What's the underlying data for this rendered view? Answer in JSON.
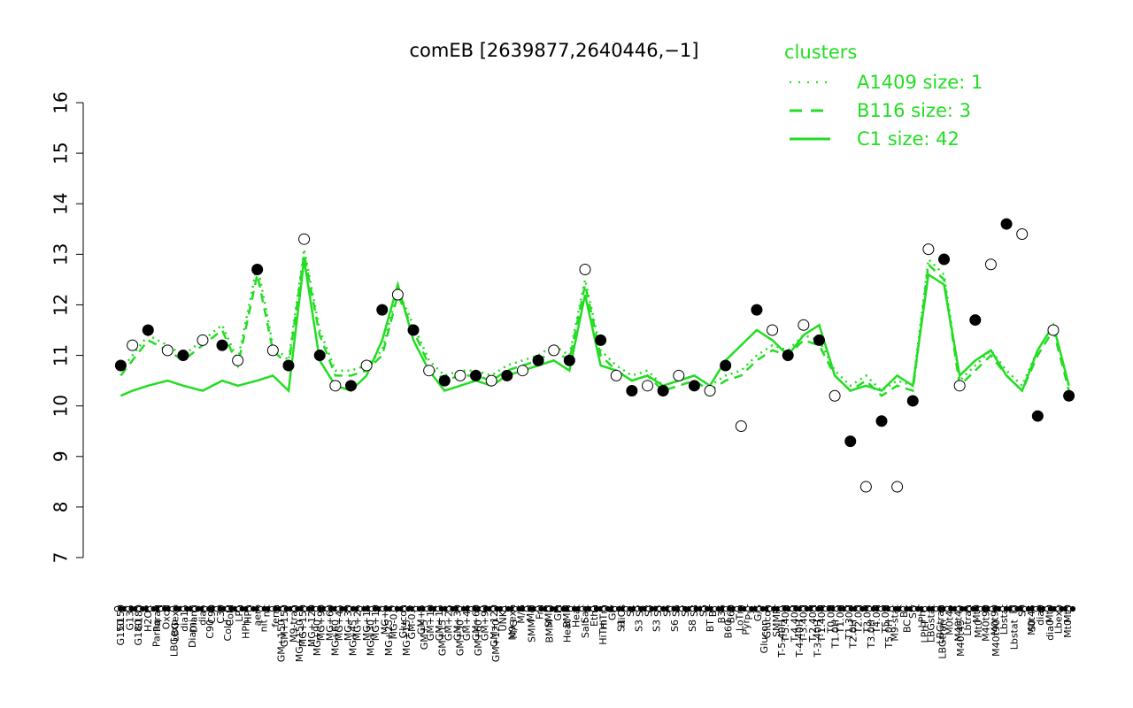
{
  "chart_data": {
    "type": "line",
    "title": "comEB [2639877,2640446,−1]",
    "ylim": [
      7,
      16
    ],
    "yticks": [
      "7",
      "8",
      "9",
      "10",
      "11",
      "12",
      "13",
      "14",
      "15",
      "16"
    ],
    "colors": {
      "clusters": "#22dd22",
      "points_filled": "#000000",
      "points_open": "#ffffff",
      "axis": "#000000"
    },
    "legend": {
      "title": "clusters",
      "placement": "top-right",
      "entries": [
        {
          "label": "A1409 size: 1",
          "style": "dotted"
        },
        {
          "label": "B116 size: 3",
          "style": "dashed"
        },
        {
          "label": "C1 size: 42",
          "style": "solid"
        }
      ]
    },
    "x_labels_upper": [
      "G150",
      "G135",
      "G180",
      "H2O2",
      "Paraq",
      "Oxctl",
      "LBGexp",
      "dia15",
      "Diami",
      "dia5",
      "C90",
      "C30",
      "Cold",
      "LPh",
      "HPh",
      "aero",
      "nit",
      "ferm",
      "GM+150",
      "M9-tran",
      "MG+150",
      "MG+120",
      "MG+90",
      "MG+60",
      "MG+45",
      "MG+30",
      "MG+25",
      "MG+15",
      "MG+10",
      "MG+5",
      "MG-0.2",
      "Glucon",
      "GM-0.2",
      "GM+5",
      "GM+10",
      "GM+15",
      "GM+25",
      "GM+30",
      "GM+45",
      "GM+60",
      "GM+90",
      "GM+120",
      "UNK1",
      "M9-exp",
      "M/G",
      "Mal",
      "Fru",
      "SMM",
      "Glu",
      "BMM",
      "Heat",
      "Salt",
      "Etha",
      "HiTm",
      "Gly",
      "HiOs",
      "S1",
      "S2",
      "S3",
      "S4",
      "S5",
      "S6",
      "S7",
      "S8",
      "S6",
      "BT",
      "B36",
      "B60",
      "LoTm",
      "Pyr",
      "G/S",
      "Glucon",
      "SMMPr",
      "T-5.40H",
      "T-4.40H",
      "T-3.40H",
      "T-2.40H",
      "T-1.40H",
      "T0.0H",
      "T1.0H",
      "T1.30H",
      "T2.0H",
      "T3.0H",
      "T4.0H",
      "T5.0H",
      "M9-stat",
      "BC",
      "Sw",
      "LPhT",
      "LBGstat",
      "LBGtran",
      "M0t45",
      "M40t45",
      "Lbtran",
      "Mt0",
      "M40t90",
      "M0t90",
      "Lbstat",
      "BI",
      "S0",
      "M0t45",
      "dia0",
      "Mt0",
      "Lbexp",
      "Mt0"
    ],
    "x_labels_lower": [
      "G150",
      "G180",
      "Paraq",
      "LBGexp",
      "Diami",
      "C90",
      "Cold",
      "HPh",
      "nit",
      "GM+150",
      "MG+150",
      "MG+90",
      "MG+60",
      "MG+45",
      "MG+30",
      "MG+25",
      "MG+15",
      "GM+5",
      "GM+15",
      "GM+30",
      "GM+60",
      "GM+120",
      "M/G",
      "SMM",
      "BMM",
      "Heat",
      "Salt",
      "HiTm",
      "S1",
      "S3",
      "S3",
      "S6",
      "S8",
      "BT",
      "B60",
      "Pyr",
      "Glucon",
      "T-5.40H",
      "T-4.40H",
      "T-3.40H",
      "T1.0H",
      "T2.0H",
      "T3.0H",
      "T5.0H",
      "BC",
      "LPhT",
      "LBGtran",
      "M40t45",
      "Mt0",
      "M40t90",
      "Lbstat",
      "S0",
      "dia0",
      "Mt0"
    ],
    "series": [
      {
        "name": "C1 size: 42",
        "style": "solid",
        "x": [
          1,
          4,
          8,
          13,
          17,
          22,
          27,
          31,
          36,
          40,
          44,
          48,
          52,
          56,
          60,
          64,
          68,
          72,
          76,
          80,
          84,
          88,
          92,
          96,
          100,
          104,
          108,
          112,
          116,
          120,
          124,
          128,
          132,
          136,
          140,
          144,
          148,
          152,
          156,
          160,
          164,
          168,
          172,
          176,
          180,
          184,
          188,
          192,
          196,
          200,
          204,
          208,
          212,
          216,
          220,
          224,
          228,
          232,
          236,
          240,
          244
        ],
        "values": [
          10.2,
          10.3,
          10.4,
          10.5,
          10.4,
          10.3,
          10.5,
          10.4,
          10.5,
          10.6,
          10.3,
          12.9,
          10.9,
          10.4,
          10.3,
          10.6,
          11.3,
          12.4,
          11.3,
          10.7,
          10.3,
          10.4,
          10.5,
          10.4,
          10.6,
          10.7,
          10.8,
          10.9,
          10.7,
          12.2,
          10.8,
          10.7,
          10.5,
          10.6,
          10.4,
          10.5,
          10.6,
          10.4,
          10.9,
          11.2,
          11.5,
          11.3,
          11.0,
          11.4,
          11.6,
          10.6,
          10.3,
          10.4,
          10.3,
          10.6,
          10.4,
          12.6,
          12.4,
          10.6,
          10.9,
          11.1,
          10.6,
          10.3,
          11.1,
          11.6,
          10.4
        ]
      },
      {
        "name": "B116 size: 3",
        "style": "dashed",
        "x": [
          1,
          4,
          8,
          13,
          17,
          22,
          27,
          31,
          36,
          40,
          44,
          48,
          52,
          56,
          60,
          64,
          68,
          72,
          76,
          80,
          84,
          88,
          92,
          96,
          100,
          104,
          108,
          112,
          116,
          120,
          124,
          128,
          132,
          136,
          140,
          144,
          148,
          152,
          156,
          160,
          164,
          168,
          172,
          176,
          180,
          184,
          188,
          192,
          196,
          200,
          204,
          208,
          212,
          216,
          220,
          224,
          228,
          232,
          236,
          240,
          244
        ],
        "values": [
          10.6,
          10.9,
          11.3,
          11.1,
          10.9,
          11.2,
          11.5,
          10.8,
          12.6,
          11.1,
          10.8,
          13.0,
          11.4,
          10.6,
          10.6,
          10.7,
          11.0,
          12.2,
          11.5,
          10.8,
          10.5,
          10.6,
          10.6,
          10.5,
          10.7,
          10.8,
          10.9,
          11.1,
          10.9,
          12.4,
          11.0,
          10.7,
          10.5,
          10.6,
          10.3,
          10.4,
          10.5,
          10.3,
          10.5,
          10.6,
          10.9,
          11.1,
          11.0,
          11.3,
          11.2,
          10.6,
          10.3,
          10.5,
          10.2,
          10.4,
          10.3,
          12.8,
          12.5,
          10.4,
          10.7,
          11.0,
          10.6,
          10.3,
          11.0,
          11.5,
          10.3
        ]
      },
      {
        "name": "A1409 size: 1",
        "style": "dotted",
        "x": [
          1,
          4,
          8,
          13,
          17,
          22,
          27,
          31,
          36,
          40,
          44,
          48,
          52,
          56,
          60,
          64,
          68,
          72,
          76,
          80,
          84,
          88,
          92,
          96,
          100,
          104,
          108,
          112,
          116,
          120,
          124,
          128,
          132,
          136,
          140,
          144,
          148,
          152,
          156,
          160,
          164,
          168,
          172,
          176,
          180,
          184,
          188,
          192,
          196,
          200,
          204,
          208,
          212,
          216,
          220,
          224,
          228,
          232,
          236,
          240,
          244
        ],
        "values": [
          10.7,
          11.0,
          11.4,
          11.2,
          11.0,
          11.3,
          11.6,
          10.9,
          12.8,
          11.2,
          10.9,
          13.1,
          11.5,
          10.7,
          10.7,
          10.8,
          11.1,
          12.3,
          11.6,
          10.9,
          10.6,
          10.7,
          10.7,
          10.6,
          10.8,
          10.9,
          11.0,
          11.2,
          11.0,
          12.5,
          11.1,
          10.8,
          10.6,
          10.7,
          10.4,
          10.5,
          10.6,
          10.4,
          10.6,
          10.7,
          11.0,
          11.2,
          11.1,
          11.4,
          11.3,
          10.7,
          10.4,
          10.6,
          10.3,
          10.5,
          10.4,
          12.9,
          12.6,
          10.5,
          10.8,
          11.1,
          10.7,
          10.4,
          11.1,
          11.6,
          10.4
        ]
      },
      {
        "name": "",
        "style": "points",
        "x": [
          1,
          4,
          8,
          13,
          17,
          22,
          27,
          31,
          36,
          40,
          44,
          48,
          52,
          56,
          60,
          64,
          68,
          72,
          76,
          80,
          84,
          88,
          92,
          96,
          100,
          104,
          108,
          112,
          116,
          120,
          124,
          128,
          132,
          136,
          140,
          144,
          148,
          152,
          156,
          160,
          164,
          168,
          172,
          176,
          180,
          184,
          188,
          192,
          196,
          200,
          204,
          208,
          212,
          216,
          220,
          224,
          228,
          232,
          236,
          240,
          244
        ],
        "values": [
          10.8,
          11.2,
          11.5,
          11.1,
          11.0,
          11.3,
          11.2,
          10.9,
          12.7,
          11.1,
          10.8,
          13.3,
          11.0,
          10.4,
          10.4,
          10.8,
          11.9,
          12.2,
          11.5,
          10.7,
          10.5,
          10.6,
          10.6,
          10.5,
          10.6,
          10.7,
          10.9,
          11.1,
          10.9,
          12.7,
          11.3,
          10.6,
          10.3,
          10.4,
          10.3,
          10.6,
          10.4,
          10.3,
          10.8,
          9.6,
          11.9,
          11.5,
          11.0,
          11.6,
          11.3,
          10.2,
          9.3,
          8.4,
          9.7,
          8.4,
          10.1,
          13.1,
          12.9,
          10.4,
          11.7,
          12.8,
          13.6,
          13.4,
          9.8,
          11.5,
          10.2
        ]
      }
    ],
    "grid": false
  }
}
